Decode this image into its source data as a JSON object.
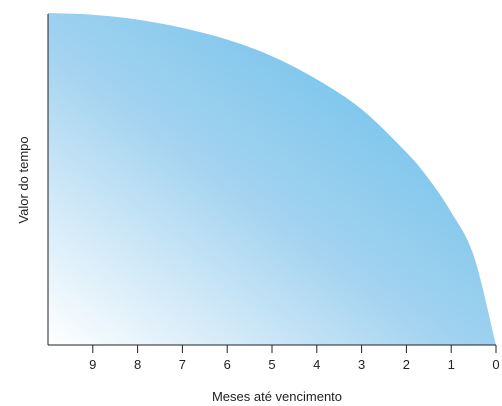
{
  "chart_data": {
    "type": "area",
    "xlabel": "Meses até vencimento",
    "ylabel": "Valor do tempo",
    "x_ticks": [
      "9",
      "8",
      "7",
      "6",
      "5",
      "4",
      "3",
      "2",
      "1",
      "0"
    ],
    "xlim": [
      10,
      0
    ],
    "x_reversed": true,
    "y_ticks": [],
    "grid": false,
    "legend": "none",
    "series": [
      {
        "x": [
          10,
          9,
          8,
          7,
          6,
          5,
          4,
          3,
          2,
          1.5,
          1,
          0.5,
          0
        ],
        "values": [
          1.0,
          0.995,
          0.98,
          0.955,
          0.92,
          0.87,
          0.8,
          0.71,
          0.58,
          0.5,
          0.4,
          0.27,
          0.0
        ]
      }
    ],
    "colors": {
      "fill_start": "#ffffff",
      "fill_mid": "#a3d3f0",
      "fill_end": "#5bbae9",
      "axis": "#222222"
    }
  }
}
